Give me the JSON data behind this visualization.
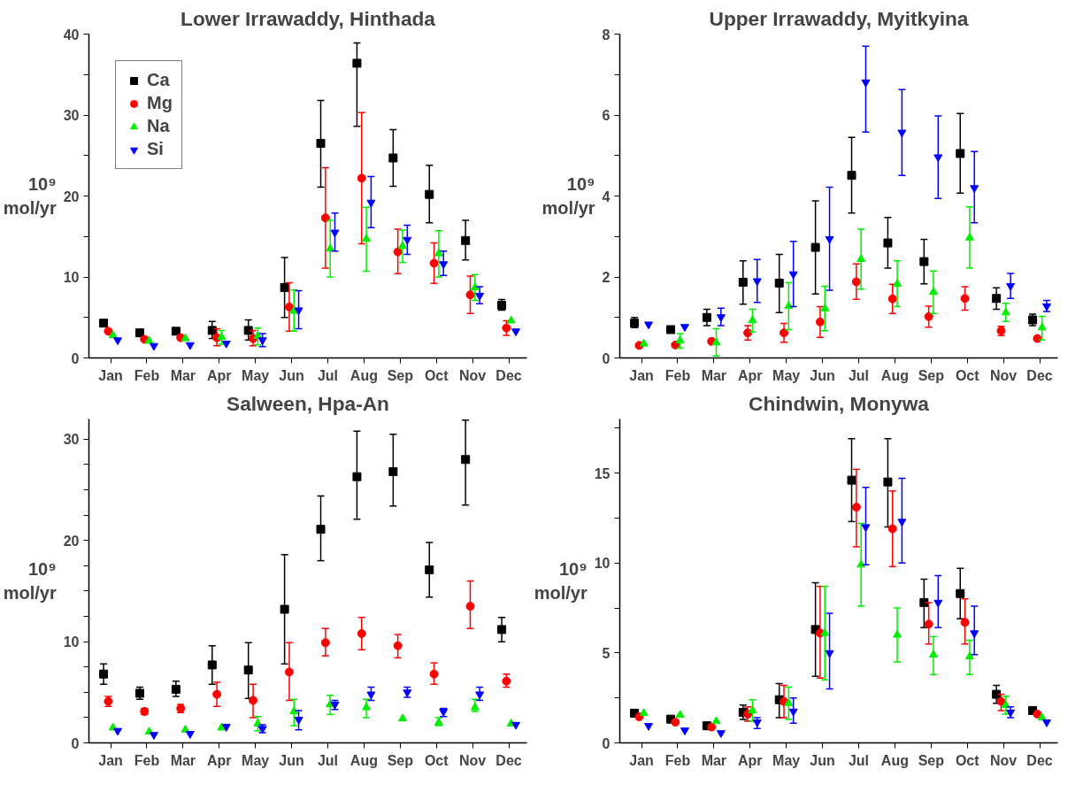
{
  "chart_data": [
    {
      "type": "scatter",
      "title": "Lower Irrawaddy, Hinthada",
      "ylabel": "10⁹ mol/yr",
      "legend": "top left",
      "grid": false,
      "categories": [
        "Jan",
        "Feb",
        "Mar",
        "Apr",
        "May",
        "Jun",
        "Jul",
        "Aug",
        "Sep",
        "Oct",
        "Nov",
        "Dec"
      ],
      "ylim": [
        0,
        40
      ],
      "yticks": [
        0,
        {
          "value": 5,
          "label": null
        },
        10,
        {
          "value": 15,
          "label": null
        },
        20,
        {
          "value": 25,
          "label": null
        },
        30,
        {
          "value": 35,
          "label": null
        },
        40
      ],
      "series": [
        {
          "name": "Ca",
          "color": "#000000",
          "marker": "square",
          "values": [
            4.3,
            3.1,
            3.3,
            3.4,
            3.4,
            8.7,
            26.5,
            36.4,
            24.7,
            20.2,
            14.5,
            6.5
          ],
          "errors": [
            null,
            null,
            null,
            [
              2.4,
              4.5
            ],
            [
              2.2,
              4.7
            ],
            [
              5.0,
              12.4
            ],
            [
              21.1,
              31.8
            ],
            [
              28.6,
              38.9
            ],
            [
              21.2,
              28.2
            ],
            [
              16.7,
              23.8
            ],
            [
              12.1,
              17.0
            ],
            [
              5.9,
              7.2
            ]
          ]
        },
        {
          "name": "Mg",
          "color": "#ff0000",
          "marker": "circle",
          "values": [
            3.3,
            2.3,
            2.5,
            2.5,
            2.4,
            6.3,
            17.3,
            22.2,
            13.1,
            11.7,
            7.8,
            3.7
          ],
          "errors": [
            null,
            null,
            null,
            [
              1.5,
              3.6
            ],
            [
              1.5,
              3.4
            ],
            [
              3.3,
              9.3
            ],
            [
              11.1,
              23.5
            ],
            [
              14.1,
              30.3
            ],
            [
              10.4,
              15.9
            ],
            [
              9.2,
              14.2
            ],
            [
              5.5,
              10.1
            ],
            [
              2.8,
              4.6
            ]
          ]
        },
        {
          "name": "Na",
          "color": "#00ee00",
          "marker": "triangle",
          "values": [
            2.8,
            2.1,
            2.4,
            2.6,
            2.7,
            5.8,
            13.5,
            14.7,
            13.8,
            12.9,
            8.7,
            4.6
          ],
          "errors": [
            null,
            null,
            null,
            [
              1.7,
              3.4
            ],
            [
              1.6,
              3.7
            ],
            [
              3.3,
              8.4
            ],
            [
              10.0,
              17.0
            ],
            [
              10.7,
              18.6
            ],
            [
              11.8,
              15.8
            ],
            [
              10.0,
              15.7
            ],
            [
              7.1,
              10.3
            ],
            null
          ]
        },
        {
          "name": "Si",
          "color": "#0000ff",
          "values": [
            2.2,
            1.5,
            1.6,
            1.8,
            2.2,
            5.9,
            15.5,
            19.2,
            14.6,
            11.6,
            7.7,
            3.3
          ],
          "errors": [
            null,
            null,
            null,
            null,
            [
              1.4,
              3.0
            ],
            [
              3.6,
              8.3
            ],
            [
              13.2,
              17.9
            ],
            [
              16.1,
              22.4
            ],
            [
              12.8,
              16.4
            ],
            [
              10.2,
              13.2
            ],
            [
              6.7,
              8.8
            ],
            null
          ]
        }
      ]
    },
    {
      "type": "scatter",
      "title": "Upper Irrawaddy, Myitkyina",
      "ylabel": "10⁹ mol/yr",
      "grid": false,
      "categories": [
        "Jan",
        "Feb",
        "Mar",
        "Apr",
        "May",
        "Jun",
        "Jul",
        "Aug",
        "Sep",
        "Oct",
        "Nov",
        "Dec"
      ],
      "ylim": [
        0,
        8
      ],
      "yticks": [
        0,
        {
          "value": 1,
          "label": null
        },
        2,
        {
          "value": 3,
          "label": null
        },
        4,
        {
          "value": 5,
          "label": null
        },
        6,
        {
          "value": 7,
          "label": null
        },
        8
      ],
      "series": [
        {
          "color": "#000000",
          "marker": "square",
          "values": [
            0.86,
            0.7,
            1.0,
            1.87,
            1.85,
            2.73,
            4.51,
            2.84,
            2.38,
            5.05,
            1.47,
            0.94
          ],
          "errors": [
            [
              0.75,
              1.0
            ],
            null,
            [
              0.8,
              1.2
            ],
            [
              1.33,
              2.4
            ],
            [
              1.12,
              2.56
            ],
            [
              1.58,
              3.88
            ],
            [
              3.58,
              5.45
            ],
            [
              2.22,
              3.47
            ],
            [
              1.83,
              2.93
            ],
            [
              4.07,
              6.04
            ],
            [
              1.2,
              1.73
            ],
            [
              0.8,
              1.08
            ]
          ]
        },
        {
          "color": "#ff0000",
          "marker": "circle",
          "values": [
            0.31,
            0.32,
            0.41,
            0.62,
            0.62,
            0.89,
            1.88,
            1.46,
            1.02,
            1.47,
            0.67,
            0.48
          ],
          "errors": [
            null,
            null,
            null,
            [
              0.44,
              0.8
            ],
            [
              0.39,
              0.85
            ],
            [
              0.51,
              1.27
            ],
            [
              1.45,
              2.32
            ],
            [
              1.1,
              1.82
            ],
            [
              0.76,
              1.28
            ],
            [
              1.18,
              1.76
            ],
            [
              0.55,
              0.78
            ],
            null
          ]
        },
        {
          "color": "#00ee00",
          "marker": "triangle",
          "values": [
            0.35,
            0.43,
            0.38,
            0.93,
            1.28,
            1.22,
            2.44,
            1.83,
            1.63,
            2.97,
            1.12,
            0.75
          ],
          "errors": [
            null,
            [
              0.24,
              0.6
            ],
            [
              0.05,
              0.72
            ],
            [
              0.64,
              1.2
            ],
            [
              0.7,
              1.86
            ],
            [
              0.67,
              1.77
            ],
            [
              1.7,
              3.18
            ],
            [
              1.27,
              2.4
            ],
            [
              1.1,
              2.15
            ],
            [
              2.22,
              3.73
            ],
            [
              0.9,
              1.35
            ],
            [
              0.45,
              1.03
            ]
          ]
        },
        {
          "color": "#0000ff",
          "values": [
            0.83,
            0.77,
            1.01,
            1.9,
            2.07,
            2.94,
            6.81,
            5.57,
            4.96,
            4.2,
            1.78,
            1.28
          ],
          "errors": [
            null,
            null,
            [
              0.8,
              1.23
            ],
            [
              1.37,
              2.43
            ],
            [
              1.27,
              2.88
            ],
            [
              1.67,
              4.22
            ],
            [
              5.58,
              7.7
            ],
            [
              4.51,
              6.63
            ],
            [
              3.94,
              5.98
            ],
            [
              3.34,
              5.1
            ],
            [
              1.47,
              2.09
            ],
            [
              1.15,
              1.42
            ]
          ]
        }
      ]
    },
    {
      "type": "scatter",
      "title": "Salween, Hpa-An",
      "ylabel": "10⁹ mol/yr",
      "grid": false,
      "categories": [
        "Jan",
        "Feb",
        "Mar",
        "Apr",
        "May",
        "Jun",
        "Jul",
        "Aug",
        "Sep",
        "Oct",
        "Nov",
        "Dec"
      ],
      "ylim": [
        0,
        32
      ],
      "yticks": [
        0,
        {
          "value": 2.5,
          "label": null
        },
        {
          "value": 5,
          "label": null
        },
        {
          "value": 7.5,
          "label": null
        },
        10,
        {
          "value": 12.5,
          "label": null
        },
        {
          "value": 15,
          "label": null
        },
        {
          "value": 17.5,
          "label": null
        },
        20,
        {
          "value": 22.5,
          "label": null
        },
        {
          "value": 25,
          "label": null
        },
        {
          "value": 27.5,
          "label": null
        },
        30
      ],
      "series": [
        {
          "color": "#000000",
          "marker": "square",
          "values": [
            6.8,
            4.9,
            5.3,
            7.7,
            7.2,
            13.2,
            21.1,
            26.3,
            26.8,
            17.1,
            28.0,
            11.2
          ],
          "errors": [
            [
              5.8,
              7.8
            ],
            [
              4.3,
              5.5
            ],
            [
              4.6,
              6.1
            ],
            [
              5.8,
              9.6
            ],
            [
              4.4,
              9.9
            ],
            [
              7.8,
              18.6
            ],
            [
              18.0,
              24.4
            ],
            [
              22.1,
              30.8
            ],
            [
              23.4,
              30.5
            ],
            [
              14.4,
              19.8
            ],
            [
              23.5,
              31.9
            ],
            [
              10.0,
              12.4
            ]
          ]
        },
        {
          "color": "#ff0000",
          "marker": "circle",
          "values": [
            4.1,
            3.1,
            3.4,
            4.8,
            4.2,
            7.0,
            9.9,
            10.8,
            9.6,
            6.8,
            13.5,
            6.1
          ],
          "errors": [
            [
              3.6,
              4.6
            ],
            [
              2.8,
              3.4
            ],
            [
              3.0,
              3.8
            ],
            [
              3.6,
              6.0
            ],
            [
              2.5,
              5.8
            ],
            [
              4.2,
              9.9
            ],
            [
              8.6,
              11.3
            ],
            [
              9.2,
              12.4
            ],
            [
              8.4,
              10.7
            ],
            [
              5.8,
              7.9
            ],
            [
              11.3,
              16.0
            ],
            [
              5.5,
              6.8
            ]
          ]
        },
        {
          "color": "#00ee00",
          "marker": "triangle",
          "values": [
            1.5,
            1.1,
            1.3,
            1.5,
            1.9,
            3.1,
            3.8,
            3.5,
            2.4,
            2.0,
            3.5,
            1.9
          ],
          "errors": [
            null,
            null,
            null,
            null,
            [
              1.2,
              2.6
            ],
            [
              1.7,
              4.3
            ],
            [
              2.8,
              4.7
            ],
            [
              2.5,
              4.3
            ],
            null,
            [
              1.7,
              2.5
            ],
            [
              3.1,
              4.3
            ],
            null
          ]
        },
        {
          "color": "#0000ff",
          "values": [
            1.2,
            0.8,
            0.9,
            1.6,
            1.4,
            2.3,
            3.8,
            4.8,
            5.0,
            3.1,
            4.8,
            1.8
          ],
          "errors": [
            null,
            null,
            null,
            null,
            [
              1.0,
              1.8
            ],
            [
              1.3,
              3.2
            ],
            [
              3.3,
              4.2
            ],
            [
              4.2,
              5.5
            ],
            [
              4.5,
              5.5
            ],
            [
              2.6,
              3.4
            ],
            [
              4.2,
              5.5
            ],
            null
          ]
        }
      ]
    },
    {
      "type": "scatter",
      "title": "Chindwin, Monywa",
      "ylabel": "10⁹ mol/yr",
      "grid": false,
      "categories": [
        "Jan",
        "Feb",
        "Mar",
        "Apr",
        "May",
        "Jun",
        "Jul",
        "Aug",
        "Sep",
        "Oct",
        "Nov",
        "Dec"
      ],
      "ylim": [
        0,
        18
      ],
      "yticks": [
        0,
        {
          "value": 2.5,
          "label": null
        },
        5,
        {
          "value": 7.5,
          "label": null
        },
        10,
        {
          "value": 12.5,
          "label": null
        },
        15,
        {
          "value": 17.5,
          "label": null
        }
      ],
      "series": [
        {
          "color": "#000000",
          "marker": "square",
          "values": [
            1.65,
            1.32,
            0.95,
            1.7,
            2.4,
            6.3,
            14.6,
            14.5,
            7.8,
            8.3,
            2.7,
            1.8
          ],
          "errors": [
            null,
            null,
            null,
            [
              1.3,
              2.1
            ],
            [
              1.4,
              3.3
            ],
            [
              3.7,
              8.9
            ],
            [
              12.3,
              16.9
            ],
            [
              12.0,
              16.9
            ],
            [
              6.4,
              9.1
            ],
            [
              6.9,
              9.7
            ],
            [
              2.2,
              3.2
            ],
            null
          ]
        },
        {
          "color": "#ff0000",
          "marker": "circle",
          "values": [
            1.45,
            1.15,
            0.88,
            1.6,
            2.3,
            6.1,
            13.1,
            11.9,
            6.6,
            6.7,
            2.3,
            1.6
          ],
          "errors": [
            null,
            null,
            null,
            [
              1.2,
              2.0
            ],
            [
              1.4,
              3.2
            ],
            [
              3.6,
              8.7
            ],
            [
              10.9,
              15.2
            ],
            [
              9.8,
              14.0
            ],
            [
              5.5,
              7.8
            ],
            [
              5.5,
              8.0
            ],
            [
              1.8,
              2.7
            ],
            null
          ]
        },
        {
          "color": "#00ee00",
          "marker": "triangle",
          "values": [
            1.65,
            1.55,
            1.2,
            1.8,
            2.2,
            6.1,
            9.9,
            6.0,
            4.9,
            4.8,
            2.1,
            1.4
          ],
          "errors": [
            null,
            null,
            null,
            [
              1.2,
              2.4
            ],
            [
              1.3,
              3.1
            ],
            [
              3.5,
              8.7
            ],
            [
              7.6,
              12.2
            ],
            [
              4.5,
              7.5
            ],
            [
              3.8,
              5.9
            ],
            [
              3.8,
              5.7
            ],
            [
              1.6,
              2.6
            ],
            null
          ]
        },
        {
          "color": "#0000ff",
          "values": [
            0.95,
            0.7,
            0.55,
            1.15,
            1.75,
            5.0,
            12.0,
            12.3,
            7.8,
            6.1,
            1.7,
            1.15
          ],
          "errors": [
            null,
            null,
            null,
            [
              0.8,
              1.4
            ],
            [
              1.1,
              2.5
            ],
            [
              3.0,
              7.2
            ],
            [
              9.9,
              14.2
            ],
            [
              10.0,
              14.7
            ],
            [
              6.4,
              9.3
            ],
            [
              4.9,
              7.6
            ],
            [
              1.4,
              2.0
            ],
            null
          ]
        }
      ]
    }
  ]
}
